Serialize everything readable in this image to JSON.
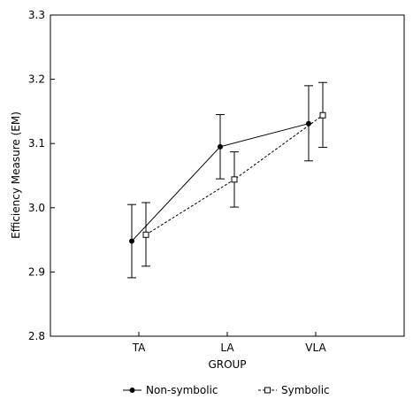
{
  "chart_data": {
    "type": "line",
    "categories": [
      "TA",
      "LA",
      "VLA"
    ],
    "xlabel": "GROUP",
    "ylabel": "Efficiency Measure (EM)",
    "ylim": [
      2.8,
      3.3
    ],
    "yticks": [
      2.8,
      2.9,
      3.0,
      3.1,
      3.2,
      3.3
    ],
    "ytick_labels": [
      "2.8",
      "2.9",
      "3.0",
      "3.1",
      "3.2",
      "3.3"
    ],
    "grid": false,
    "legend_position": "bottom",
    "series": [
      {
        "name": "Non-symbolic",
        "marker": "filled-circle",
        "line_style": "solid",
        "values": [
          2.948,
          3.095,
          3.131
        ],
        "err_low": [
          2.891,
          3.045,
          3.073
        ],
        "err_high": [
          3.005,
          3.145,
          3.19
        ]
      },
      {
        "name": "Symbolic",
        "marker": "open-square",
        "line_style": "dashed",
        "values": [
          2.958,
          3.044,
          3.144
        ],
        "err_low": [
          2.909,
          3.001,
          3.094
        ],
        "err_high": [
          3.008,
          3.087,
          3.195
        ]
      }
    ]
  }
}
